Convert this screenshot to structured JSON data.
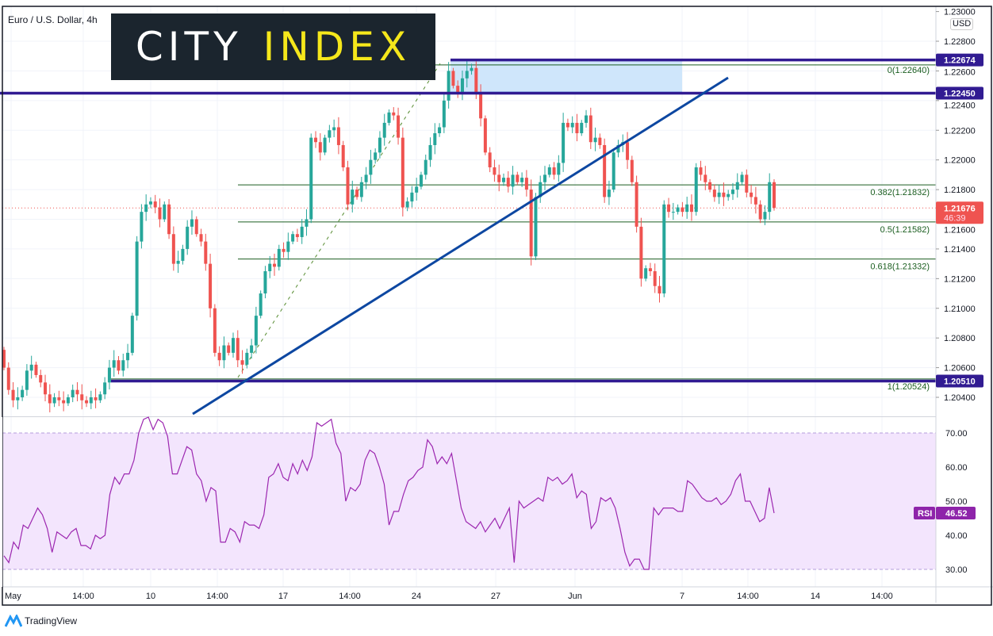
{
  "header": {
    "symbol_title": "Euro / U.S. Dollar, 4h",
    "currency": "USD"
  },
  "logo": {
    "part1": "CITY",
    "part2": "INDEX"
  },
  "footer": {
    "brand": "TradingView"
  },
  "colors": {
    "up": "#26a69a",
    "down": "#ef5350",
    "level_line": "#311b92",
    "fib": "#1b5e20",
    "trendline": "#0d47a1",
    "zone": "#cfe6fb",
    "rsi_line": "#9c27b0",
    "rsi_band": "#f3e5fd",
    "price_tag": "#ef5350",
    "rsi_tag": "#8e24aa"
  },
  "chart_data": [
    {
      "type": "candlestick",
      "title": "Euro / U.S. Dollar, 4h",
      "ylim": [
        1.2035,
        1.23
      ],
      "y_ticks": [
        "1.23000",
        "1.22800",
        "1.22600",
        "1.22400",
        "1.22200",
        "1.22000",
        "1.21800",
        "1.21600",
        "1.21400",
        "1.21200",
        "1.21000",
        "1.20800",
        "1.20600",
        "1.20400"
      ],
      "x_ticks": [
        "May",
        "14:00",
        "10",
        "14:00",
        "17",
        "14:00",
        "24",
        "27",
        "Jun",
        "7",
        "14:00",
        "14",
        "14:00"
      ],
      "closes": [
        1.206,
        1.2045,
        1.2038,
        1.204,
        1.2045,
        1.2058,
        1.2062,
        1.2055,
        1.205,
        1.2042,
        1.2036,
        1.204,
        1.2038,
        1.2036,
        1.204,
        1.2045,
        1.2042,
        1.2038,
        1.2036,
        1.204,
        1.2038,
        1.2042,
        1.205,
        1.206,
        1.2065,
        1.2058,
        1.2065,
        1.207,
        1.2095,
        1.2145,
        1.2165,
        1.217,
        1.2172,
        1.2168,
        1.216,
        1.217,
        1.215,
        1.213,
        1.2132,
        1.214,
        1.2155,
        1.216,
        1.215,
        1.2145,
        1.213,
        1.21,
        1.207,
        1.2065,
        1.2075,
        1.207,
        1.208,
        1.2065,
        1.2062,
        1.207,
        1.2075,
        1.2095,
        1.211,
        1.2125,
        1.213,
        1.2128,
        1.214,
        1.2138,
        1.2145,
        1.215,
        1.2148,
        1.2155,
        1.216,
        1.2215,
        1.2212,
        1.2205,
        1.2215,
        1.222,
        1.2222,
        1.221,
        1.2195,
        1.217,
        1.218,
        1.2175,
        1.2185,
        1.219,
        1.22,
        1.2205,
        1.2215,
        1.2225,
        1.2232,
        1.223,
        1.2215,
        1.2168,
        1.2172,
        1.2178,
        1.2182,
        1.219,
        1.22,
        1.221,
        1.2218,
        1.2222,
        1.224,
        1.226,
        1.225,
        1.2245,
        1.2255,
        1.226,
        1.2262,
        1.2245,
        1.2228,
        1.2205,
        1.2195,
        1.219,
        1.2185,
        1.2188,
        1.2182,
        1.219,
        1.2185,
        1.2188,
        1.218,
        1.2135,
        1.2175,
        1.2185,
        1.219,
        1.2195,
        1.219,
        1.2198,
        1.2225,
        1.2222,
        1.2225,
        1.2218,
        1.2225,
        1.223,
        1.2212,
        1.2215,
        1.221,
        1.2175,
        1.218,
        1.2205,
        1.221,
        1.2212,
        1.22,
        1.2185,
        1.2155,
        1.212,
        1.2127,
        1.2125,
        1.2115,
        1.211,
        1.217,
        1.2165,
        1.2165,
        1.2168,
        1.2165,
        1.217,
        1.2165,
        1.2195,
        1.219,
        1.2185,
        1.218,
        1.2175,
        1.2178,
        1.2175,
        1.2177,
        1.218,
        1.2185,
        1.219,
        1.2178,
        1.2175,
        1.217,
        1.216,
        1.2165,
        1.2185,
        1.21676
      ],
      "current_price": {
        "value": "1.21676",
        "countdown": "46:39"
      },
      "levels": [
        {
          "value": 1.22674,
          "label": "1.22674"
        },
        {
          "value": 1.2245,
          "label": "1.22450"
        },
        {
          "value": 1.2051,
          "label": "1.20510"
        }
      ],
      "zone": {
        "from": 1.2245,
        "to": 1.22674
      },
      "fibonacci": [
        {
          "ratio": "0",
          "value": 1.2264,
          "label": "0(1.22640)"
        },
        {
          "ratio": "0.382",
          "value": 1.21832,
          "label": "0.382(1.21832)"
        },
        {
          "ratio": "0.5",
          "value": 1.21582,
          "label": "0.5(1.21582)"
        },
        {
          "ratio": "0.618",
          "value": 1.21332,
          "label": "0.618(1.21332)"
        },
        {
          "ratio": "1",
          "value": 1.20524,
          "label": "1(1.20524)"
        }
      ],
      "trendline": {
        "from_price": 1.2035,
        "to_price": 1.2254
      }
    },
    {
      "type": "line",
      "name": "RSI",
      "ylim": [
        25,
        75
      ],
      "y_ticks": [
        "70.00",
        "60.00",
        "50.00",
        "40.00",
        "30.00"
      ],
      "band": [
        30,
        70
      ],
      "current": {
        "label": "RSI",
        "value": "46.52"
      },
      "values": [
        34,
        32,
        38,
        36,
        43,
        42,
        45,
        48,
        46,
        42,
        35,
        41,
        40,
        39,
        41,
        42,
        37,
        37,
        36,
        40,
        39,
        40,
        52,
        57,
        55,
        58,
        58,
        62,
        70,
        74,
        75,
        71,
        74,
        73,
        69,
        58,
        58,
        62,
        66,
        65,
        58,
        56,
        50,
        54,
        53,
        38,
        38,
        42,
        41,
        38,
        44,
        43,
        43,
        42,
        46,
        57,
        58,
        61,
        57,
        56,
        61,
        58,
        62,
        59,
        63,
        73,
        72,
        73,
        74,
        67,
        64,
        50,
        54,
        53,
        55,
        62,
        65,
        64,
        60,
        55,
        43,
        47,
        47,
        52,
        56,
        57,
        59,
        60,
        68,
        66,
        61,
        63,
        61,
        64,
        56,
        48,
        44,
        43,
        42,
        44,
        41,
        43,
        45,
        42,
        45,
        48,
        32,
        50,
        48,
        49,
        50,
        51,
        50,
        57,
        56,
        57,
        55,
        56,
        58,
        51,
        53,
        52,
        42,
        44,
        51,
        50,
        51,
        48,
        42,
        35,
        31,
        33,
        33,
        30,
        30,
        48,
        46,
        48,
        48,
        48,
        47,
        47,
        56,
        55,
        53,
        51,
        50,
        50,
        51,
        49,
        50,
        52,
        56,
        58,
        50,
        50,
        47,
        44,
        45,
        54,
        46.52
      ]
    }
  ]
}
